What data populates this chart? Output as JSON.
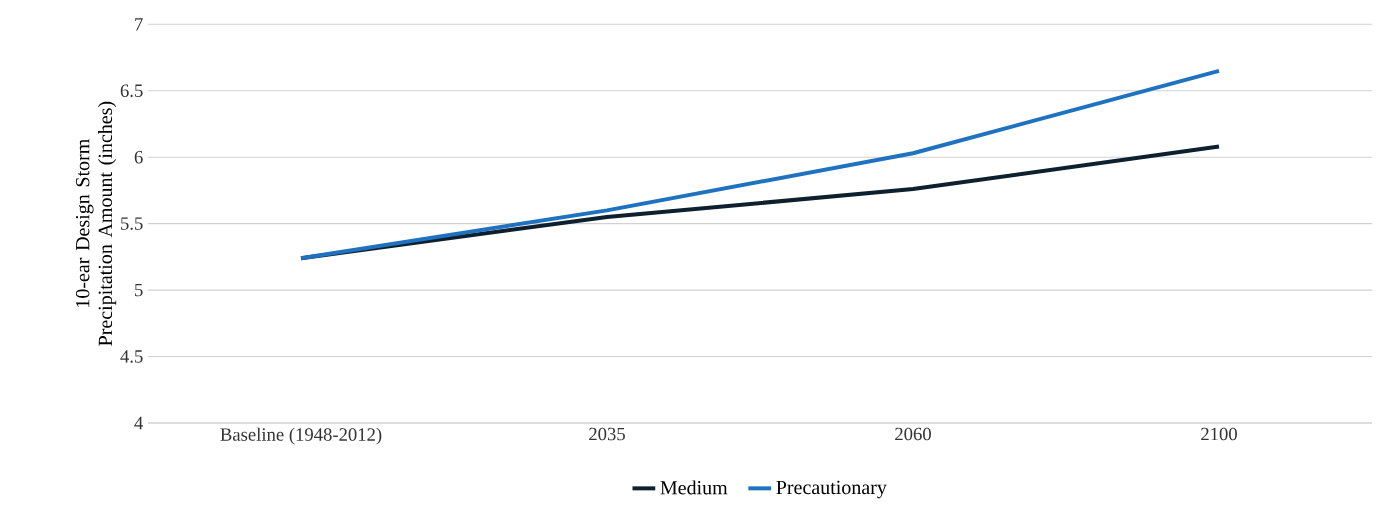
{
  "chart_data": {
    "type": "line",
    "ylabel": "10-ear Design Storm Precipitation Amount (inches)",
    "categories": [
      "Baseline (1948-2012)",
      "2035",
      "2060",
      "2100"
    ],
    "series": [
      {
        "name": "Medium",
        "color": "#0e1f2e",
        "values": [
          5.24,
          5.55,
          5.76,
          6.08
        ]
      },
      {
        "name": "Precautionary",
        "color": "#1f72bf",
        "values": [
          5.24,
          5.6,
          6.03,
          6.65
        ]
      }
    ],
    "ylim": [
      4,
      7
    ],
    "yticks": [
      4,
      4.5,
      5,
      5.5,
      6,
      6.5,
      7
    ],
    "grid": "y",
    "legend": "bottom"
  }
}
